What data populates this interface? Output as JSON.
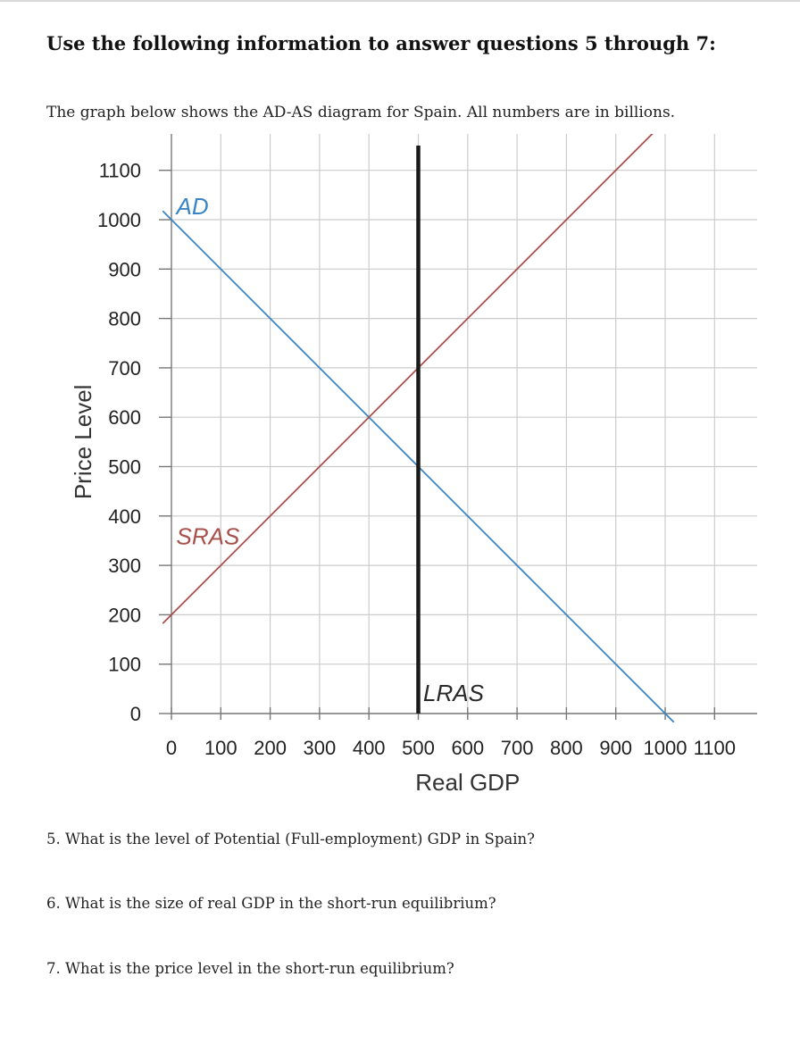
{
  "heading": "Use the following information to answer questions 5 through 7:",
  "intro": "The graph below shows the AD-AS diagram for Spain. All numbers are in billions.",
  "questions": [
    "5. What is the level of Potential (Full-employment) GDP in Spain?",
    "6. What is the size of real GDP in the short-run equilibrium?",
    "7. What is the price level in the short-run equilibrium?"
  ],
  "chart_data": {
    "type": "line",
    "xlabel": "Real GDP",
    "ylabel": "Price Level",
    "xlim": [
      0,
      1100
    ],
    "ylim": [
      0,
      1100
    ],
    "x_ticks": [
      "0",
      "100",
      "200",
      "300",
      "400",
      "500",
      "600",
      "700",
      "800",
      "900",
      "1000",
      "1100"
    ],
    "y_ticks": [
      "0",
      "100",
      "200",
      "300",
      "400",
      "500",
      "600",
      "700",
      "800",
      "900",
      "1000",
      "1100"
    ],
    "grid": true,
    "series": [
      {
        "name": "AD",
        "color": "#3a85c5",
        "x": [
          0,
          1000
        ],
        "y": [
          1000,
          0
        ]
      },
      {
        "name": "SRAS",
        "color": "#a8504c",
        "x": [
          0,
          1000
        ],
        "y": [
          200,
          1200
        ]
      },
      {
        "name": "LRAS",
        "color": "#1a1a1a",
        "x": [
          500,
          500
        ],
        "y": [
          0,
          1150
        ]
      }
    ]
  }
}
